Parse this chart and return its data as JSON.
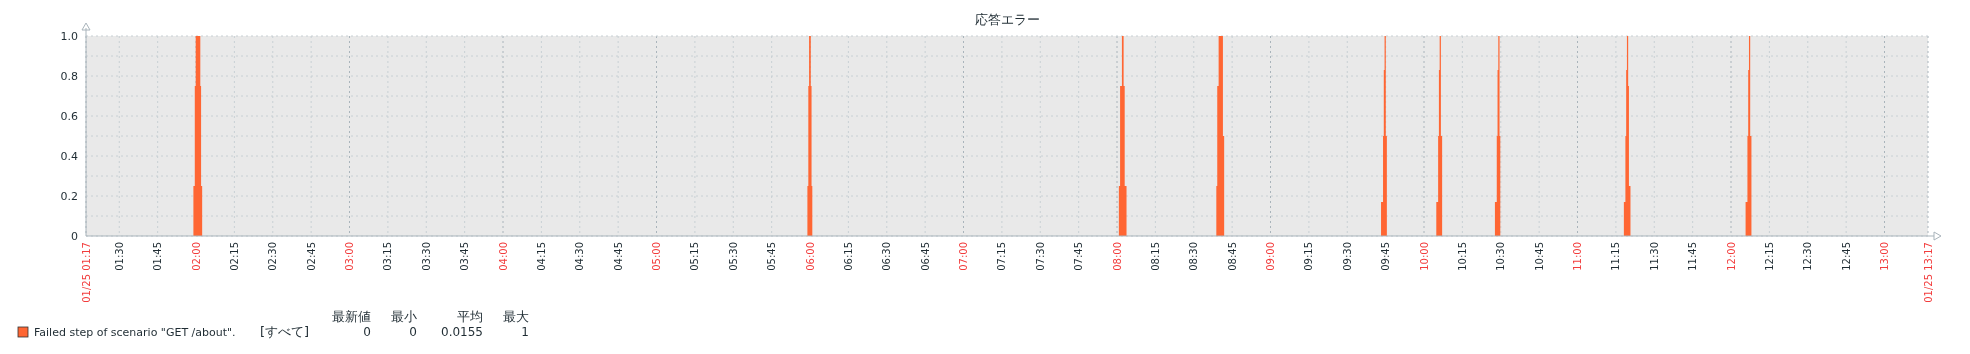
{
  "chart_data": {
    "type": "area",
    "title": "応答エラー",
    "legend": "bottom",
    "grid": true,
    "xlim": [
      1.2833,
      13.2833
    ],
    "xticks": [
      {
        "value": 1.2833,
        "label": "01/25 01:17"
      },
      {
        "value": 1.5,
        "label": "01:30"
      },
      {
        "value": 1.75,
        "label": "01:45"
      },
      {
        "value": 2,
        "label": "02:00"
      },
      {
        "value": 2.25,
        "label": "02:15"
      },
      {
        "value": 2.5,
        "label": "02:30"
      },
      {
        "value": 2.75,
        "label": "02:45"
      },
      {
        "value": 3,
        "label": "03:00"
      },
      {
        "value": 3.25,
        "label": "03:15"
      },
      {
        "value": 3.5,
        "label": "03:30"
      },
      {
        "value": 3.75,
        "label": "03:45"
      },
      {
        "value": 4,
        "label": "04:00"
      },
      {
        "value": 4.25,
        "label": "04:15"
      },
      {
        "value": 4.5,
        "label": "04:30"
      },
      {
        "value": 4.75,
        "label": "04:45"
      },
      {
        "value": 5,
        "label": "05:00"
      },
      {
        "value": 5.25,
        "label": "05:15"
      },
      {
        "value": 5.5,
        "label": "05:30"
      },
      {
        "value": 5.75,
        "label": "05:45"
      },
      {
        "value": 6,
        "label": "06:00"
      },
      {
        "value": 6.25,
        "label": "06:15"
      },
      {
        "value": 6.5,
        "label": "06:30"
      },
      {
        "value": 6.75,
        "label": "06:45"
      },
      {
        "value": 7,
        "label": "07:00"
      },
      {
        "value": 7.25,
        "label": "07:15"
      },
      {
        "value": 7.5,
        "label": "07:30"
      },
      {
        "value": 7.75,
        "label": "07:45"
      },
      {
        "value": 8,
        "label": "08:00"
      },
      {
        "value": 8.25,
        "label": "08:15"
      },
      {
        "value": 8.5,
        "label": "08:30"
      },
      {
        "value": 8.75,
        "label": "08:45"
      },
      {
        "value": 9,
        "label": "09:00"
      },
      {
        "value": 9.25,
        "label": "09:15"
      },
      {
        "value": 9.5,
        "label": "09:30"
      },
      {
        "value": 9.75,
        "label": "09:45"
      },
      {
        "value": 10,
        "label": "10:00"
      },
      {
        "value": 10.25,
        "label": "10:15"
      },
      {
        "value": 10.5,
        "label": "10:30"
      },
      {
        "value": 10.75,
        "label": "10:45"
      },
      {
        "value": 11,
        "label": "11:00"
      },
      {
        "value": 11.25,
        "label": "11:15"
      },
      {
        "value": 11.5,
        "label": "11:30"
      },
      {
        "value": 11.75,
        "label": "11:45"
      },
      {
        "value": 12,
        "label": "12:00"
      },
      {
        "value": 12.25,
        "label": "12:15"
      },
      {
        "value": 12.5,
        "label": "12:30"
      },
      {
        "value": 12.75,
        "label": "12:45"
      },
      {
        "value": 13,
        "label": "13:00"
      },
      {
        "value": 13.2833,
        "label": "01/25 13:17"
      }
    ],
    "ylim": [
      0,
      1
    ],
    "yticks": [
      0,
      0.2,
      0.4,
      0.6,
      0.8,
      {
        "value": 1,
        "label": "1.0"
      }
    ],
    "annotations": [
      "[すべて]",
      "最新値",
      "最小",
      "平均",
      "最大",
      "0",
      "0",
      "0.0155",
      "1"
    ],
    "series": [
      {
        "name": "Failed step of scenario \"GET /about\".",
        "color": "#ff6633",
        "x": [
          1.2833,
          1.983,
          1.992,
          1.998,
          2.028,
          2.033,
          2.04,
          5.983,
          5.989,
          5.994,
          6.005,
          6.01,
          6.015,
          8.012,
          8.02,
          8.032,
          8.043,
          8.05,
          8.062,
          8.647,
          8.653,
          8.662,
          8.69,
          8.698,
          9.72,
          9.733,
          9.738,
          9.743,
          9.751,
          9.758,
          10.08,
          10.092,
          10.097,
          10.102,
          10.11,
          10.118,
          10.462,
          10.474,
          10.479,
          10.484,
          10.492,
          10.497,
          11.302,
          11.312,
          11.317,
          11.322,
          11.33,
          11.335,
          11.345,
          12.095,
          12.107,
          12.112,
          12.117,
          12.125,
          12.133,
          13.2833
        ],
        "values": [
          0,
          0.25,
          0.75,
          1,
          0.75,
          0.25,
          0,
          0.25,
          0.75,
          1,
          0.75,
          0.25,
          0,
          0.25,
          0.75,
          1,
          0.75,
          0.25,
          0,
          0.25,
          0.75,
          1,
          0.5,
          0,
          0.17,
          0.5,
          0.83,
          1,
          0.5,
          0,
          0.17,
          0.5,
          0.83,
          1,
          0.5,
          0,
          0.17,
          0.5,
          0.83,
          1,
          0.5,
          0,
          0.17,
          0.5,
          0.83,
          1,
          0.75,
          0.25,
          0,
          0.17,
          0.5,
          0.83,
          1,
          0.5,
          0,
          0
        ]
      }
    ]
  }
}
